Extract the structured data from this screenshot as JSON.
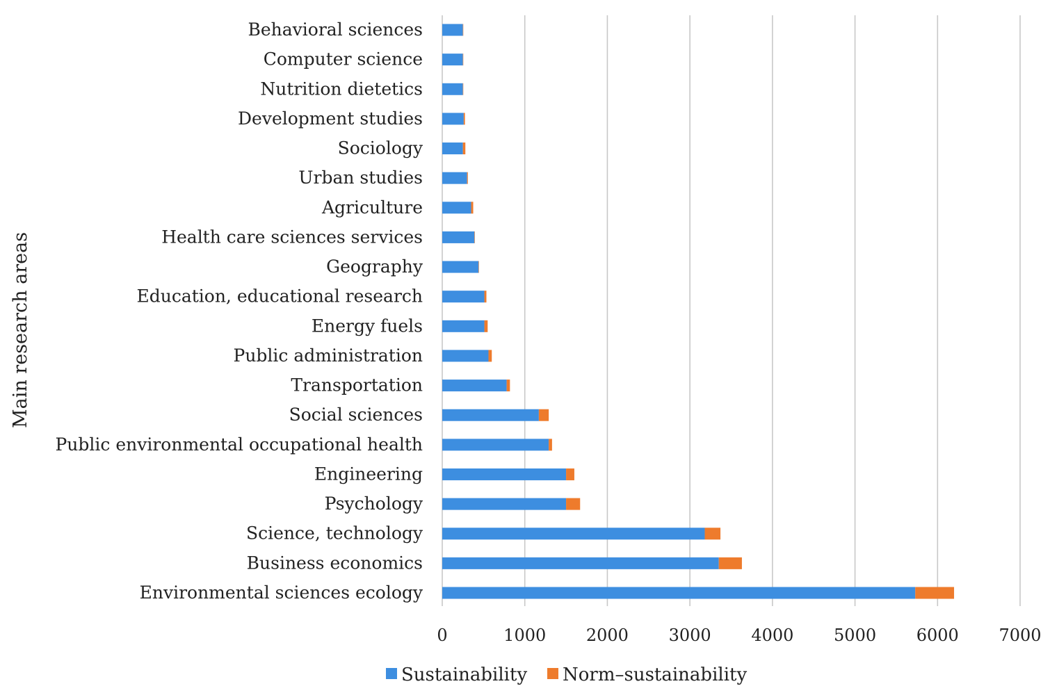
{
  "chart_data": {
    "type": "bar",
    "orientation": "horizontal",
    "stacked": true,
    "title": "",
    "xlabel": "",
    "ylabel": "Main research areas",
    "xlim": [
      0,
      7000
    ],
    "xticks": [
      0,
      1000,
      2000,
      3000,
      4000,
      5000,
      6000,
      7000
    ],
    "grid": true,
    "legend_position": "bottom",
    "categories": [
      "Behavioral sciences",
      "Computer science",
      "Nutrition dietetics",
      "Development studies",
      "Sociology",
      "Urban studies",
      "Agriculture",
      "Health care sciences services",
      "Geography",
      "Education, educational research",
      "Energy fuels",
      "Public administration",
      "Transportation",
      "Social sciences",
      "Public environmental occupational health",
      "Engineering",
      "Psychology",
      "Science, technology",
      "Business economics",
      "Environmental sciences ecology"
    ],
    "series": [
      {
        "name": "Sustainability",
        "color": "#3d8ee0",
        "values": [
          250,
          250,
          250,
          260,
          250,
          300,
          350,
          390,
          440,
          510,
          510,
          560,
          780,
          1170,
          1290,
          1500,
          1500,
          3180,
          3350,
          5730
        ]
      },
      {
        "name": "Norm–sustainability",
        "color": "#ee7b2c",
        "values": [
          5,
          5,
          5,
          15,
          30,
          10,
          25,
          5,
          5,
          25,
          40,
          40,
          40,
          120,
          40,
          100,
          170,
          190,
          280,
          470
        ]
      }
    ]
  }
}
